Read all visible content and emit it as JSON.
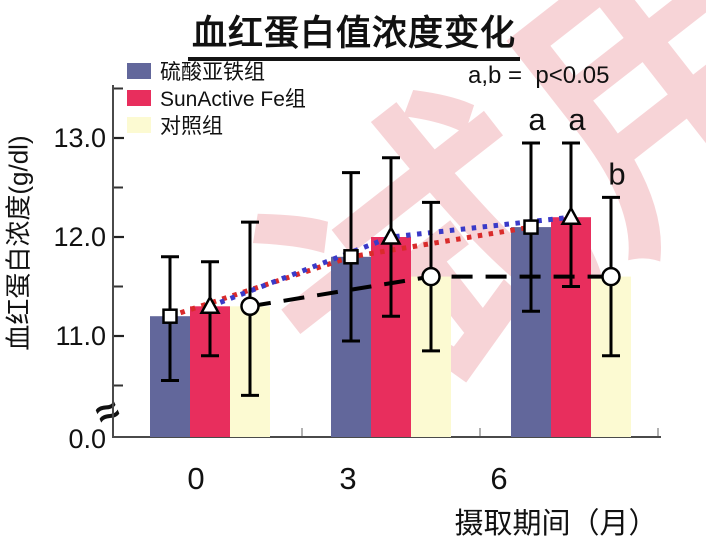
{
  "watermark": "试用",
  "title": "血红蛋白值浓度变化",
  "annotation": "a,b =  p<0.05",
  "chart_data": {
    "type": "bar",
    "title": "血红蛋白值浓度变化",
    "xlabel": "摄取期间（月）",
    "ylabel": "血红蛋白浓度(g/dl)",
    "categories": [
      "0",
      "3",
      "6"
    ],
    "grid": false,
    "legend_position": "top-left-inside",
    "y_axis": {
      "unit": "g/dl",
      "major_ticks": [
        13.0,
        12.0,
        11.0
      ],
      "major_tick_labels": [
        "13.0",
        "12.0",
        "11.0"
      ],
      "minor_ticks": [
        13.5,
        12.5,
        11.5,
        10.5
      ],
      "baseline_label": "0.0",
      "axis_break": true,
      "break_symbol": "≈"
    },
    "series": [
      {
        "name": "硫酸亚铁组",
        "bar_color": "#62679B",
        "marker": "square",
        "line": {
          "color": "#D92B2B",
          "style": "dotted"
        },
        "values": [
          11.2,
          11.8,
          12.1
        ],
        "error_high": [
          11.8,
          12.65,
          12.95
        ],
        "error_low": [
          10.55,
          10.95,
          11.25
        ]
      },
      {
        "name": "SunActive Fe组",
        "bar_color": "#E82E5D",
        "marker": "triangle",
        "line": {
          "color": "#3A3AC8",
          "style": "dotted"
        },
        "values": [
          11.3,
          12.0,
          12.2
        ],
        "error_high": [
          11.75,
          12.8,
          12.95
        ],
        "error_low": [
          10.8,
          11.2,
          11.5
        ]
      },
      {
        "name": "对照组",
        "bar_color": "#FCFAD2",
        "marker": "circle",
        "line": {
          "color": "#000000",
          "style": "dashed"
        },
        "values": [
          11.3,
          11.6,
          11.6
        ],
        "error_high": [
          12.15,
          12.35,
          12.4
        ],
        "error_low": [
          10.4,
          10.85,
          10.8
        ]
      }
    ],
    "significance_labels": [
      {
        "text": "a",
        "category_index": 2,
        "series_index": 0
      },
      {
        "text": "a",
        "category_index": 2,
        "series_index": 1
      },
      {
        "text": "b",
        "category_index": 2,
        "series_index": 2
      }
    ]
  }
}
